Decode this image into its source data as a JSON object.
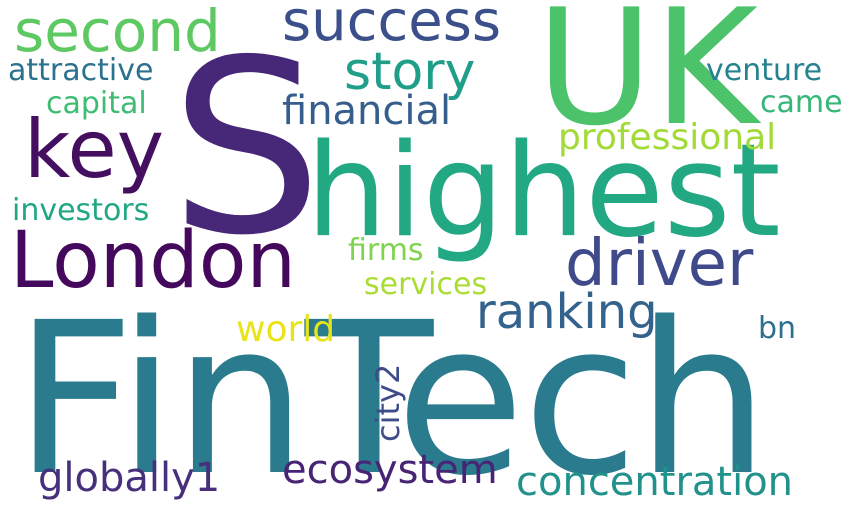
{
  "words": [
    {
      "text": "FinTech",
      "color": "#2a7b8e"
    },
    {
      "text": "S",
      "color": "#472778"
    },
    {
      "text": "UK",
      "color": "#4cc26a"
    },
    {
      "text": "highest",
      "color": "#23a884"
    },
    {
      "text": "London",
      "color": "#44095c"
    },
    {
      "text": "key",
      "color": "#450f5f"
    },
    {
      "text": "driver",
      "color": "#3f4a8a"
    },
    {
      "text": "success",
      "color": "#3b508a"
    },
    {
      "text": "second",
      "color": "#5ec962"
    },
    {
      "text": "story",
      "color": "#1f9e89"
    },
    {
      "text": "ranking",
      "color": "#33638d"
    },
    {
      "text": "concentration",
      "color": "#21918c"
    },
    {
      "text": "ecosystem",
      "color": "#482475"
    },
    {
      "text": "globally1",
      "color": "#46307c"
    },
    {
      "text": "financial",
      "color": "#355e8d"
    },
    {
      "text": "professional",
      "color": "#a2da37"
    },
    {
      "text": "world",
      "color": "#e8e419"
    },
    {
      "text": "investors",
      "color": "#22a785"
    },
    {
      "text": "attractive",
      "color": "#2c718e"
    },
    {
      "text": "capital",
      "color": "#3ebc74"
    },
    {
      "text": "venture",
      "color": "#26828e"
    },
    {
      "text": "came",
      "color": "#35b779"
    },
    {
      "text": "firms",
      "color": "#7fd34e"
    },
    {
      "text": "services",
      "color": "#aadc32"
    },
    {
      "text": "bn",
      "color": "#2e6f8e"
    },
    {
      "text": "city2",
      "color": "#3e4c8a"
    }
  ]
}
